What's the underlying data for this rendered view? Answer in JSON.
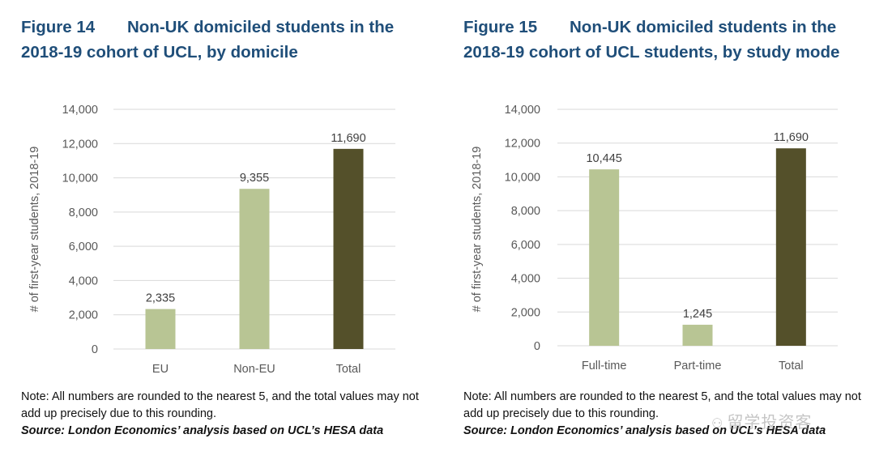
{
  "colors": {
    "title": "#1f4e79",
    "light_bar": "#b8c594",
    "dark_bar": "#54502a",
    "grid": "#d9d9d9",
    "axis_text": "#595959"
  },
  "figure14": {
    "number": "Figure 14",
    "title": "Non-UK domiciled students in the 2018-19 cohort of UCL, by domicile",
    "note": "Note: All numbers are rounded to the nearest 5, and the total values may not add up precisely due to this rounding.",
    "source": "Source: London Economics’ analysis based on UCL’s HESA data"
  },
  "figure15": {
    "number": "Figure 15",
    "title": "Non-UK domiciled students in the 2018-19 cohort of UCL students, by study mode",
    "note": "Note: All numbers are rounded to the nearest 5, and the total values may not add up precisely due to this rounding.",
    "source": "Source: London Economics’ analysis based on UCL’s HESA data"
  },
  "watermark": {
    "text": "留学投资客"
  },
  "chart_data": [
    {
      "type": "bar",
      "title": "Non-UK domiciled students in the 2018-19 cohort of UCL, by domicile",
      "categories": [
        "EU",
        "Non-EU",
        "Total"
      ],
      "values": [
        2335,
        9355,
        11690
      ],
      "data_labels": [
        "2,335",
        "9,355",
        "11,690"
      ],
      "highlight": [
        false,
        false,
        true
      ],
      "xlabel": "",
      "ylabel": "# of first-year students, 2018-19",
      "ylim": [
        0,
        14000
      ],
      "yticks": [
        0,
        2000,
        4000,
        6000,
        8000,
        10000,
        12000,
        14000
      ],
      "ytick_labels": [
        "0",
        "2,000",
        "4,000",
        "6,000",
        "8,000",
        "10,000",
        "12,000",
        "14,000"
      ],
      "grid": true
    },
    {
      "type": "bar",
      "title": "Non-UK domiciled students in the 2018-19 cohort of UCL students, by study mode",
      "categories": [
        "Full-time",
        "Part-time",
        "Total"
      ],
      "values": [
        10445,
        1245,
        11690
      ],
      "data_labels": [
        "10,445",
        "1,245",
        "11,690"
      ],
      "highlight": [
        false,
        false,
        true
      ],
      "xlabel": "",
      "ylabel": "# of first-year students, 2018-19",
      "ylim": [
        0,
        14000
      ],
      "yticks": [
        0,
        2000,
        4000,
        6000,
        8000,
        10000,
        12000,
        14000
      ],
      "ytick_labels": [
        "0",
        "2,000",
        "4,000",
        "6,000",
        "8,000",
        "10,000",
        "12,000",
        "14,000"
      ],
      "grid": true
    }
  ]
}
